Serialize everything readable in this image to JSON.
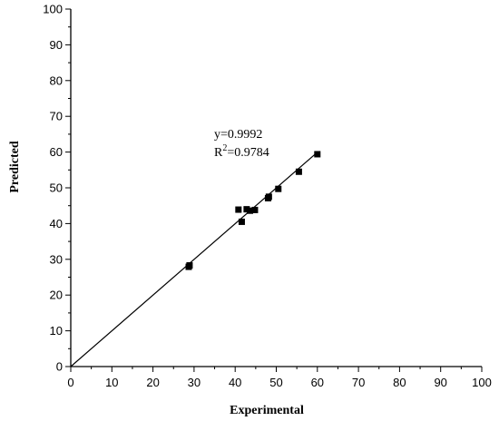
{
  "chart_data": {
    "type": "scatter",
    "xlabel": "Experimental",
    "ylabel": "Predicted",
    "xlim": [
      0,
      100
    ],
    "ylim": [
      0,
      100
    ],
    "x_ticks": [
      "0",
      "10",
      "20",
      "30",
      "40",
      "50",
      "60",
      "70",
      "80",
      "90",
      "100"
    ],
    "y_ticks": [
      "0",
      "10",
      "20",
      "30",
      "40",
      "50",
      "60",
      "70",
      "80",
      "90",
      "100"
    ],
    "grid": false,
    "marker": "square",
    "marker_color": "#000000",
    "points": [
      {
        "x": 28.7,
        "y": 27.9
      },
      {
        "x": 28.9,
        "y": 28.3
      },
      {
        "x": 40.8,
        "y": 43.9
      },
      {
        "x": 41.6,
        "y": 40.5
      },
      {
        "x": 42.8,
        "y": 44.0
      },
      {
        "x": 43.6,
        "y": 43.6
      },
      {
        "x": 44.8,
        "y": 43.8
      },
      {
        "x": 48.0,
        "y": 47.1
      },
      {
        "x": 48.2,
        "y": 47.5
      },
      {
        "x": 50.5,
        "y": 49.7
      },
      {
        "x": 55.5,
        "y": 54.5
      },
      {
        "x": 60.0,
        "y": 59.4
      }
    ],
    "fit_line": {
      "x": [
        0,
        60
      ],
      "y": [
        0,
        59.95
      ]
    },
    "annotations": {
      "equation": "y=0.9992",
      "r2_prefix": "R",
      "r2_sup": "2",
      "r2_value": "=0.9784"
    }
  }
}
